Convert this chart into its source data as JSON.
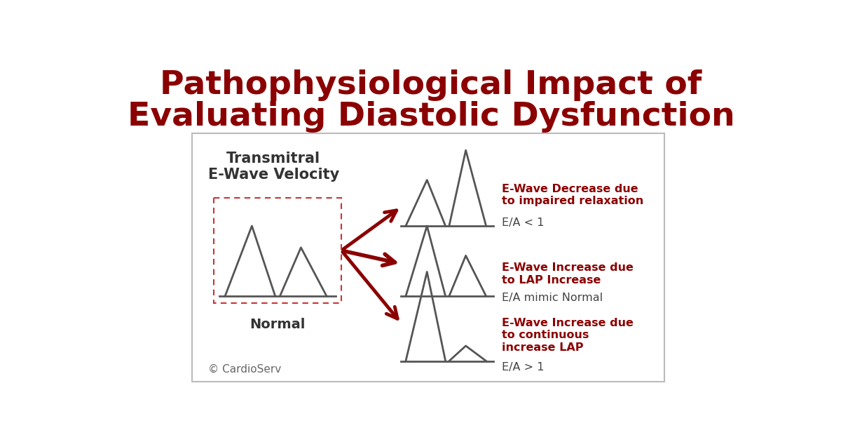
{
  "title_line1": "Pathophysiological Impact of",
  "title_line2": "Evaluating Diastolic Dysfunction",
  "title_color": "#8B0000",
  "title_fontsize": 34,
  "bg_color": "#FFFFFF",
  "panel_border": "#BBBBBB",
  "label_transmitral": "Transmitral\nE-Wave Velocity",
  "label_normal": "Normal",
  "label_copyright": "© CardioServ",
  "label1_bold": "E-Wave Decrease due\nto impaired relaxation",
  "label1_plain": "E/A < 1",
  "label2_bold": "E-Wave Increase due\nto LAP Increase",
  "label2_plain": "E/A mimic Normal",
  "label3_bold": "E-Wave Increase due\nto continuous\nincrease LAP",
  "label3_plain": "E/A > 1",
  "red_color": "#8B0000",
  "wave_color": "#555555",
  "dashed_box_color": "#CC3333",
  "label_color_plain": "#444444"
}
